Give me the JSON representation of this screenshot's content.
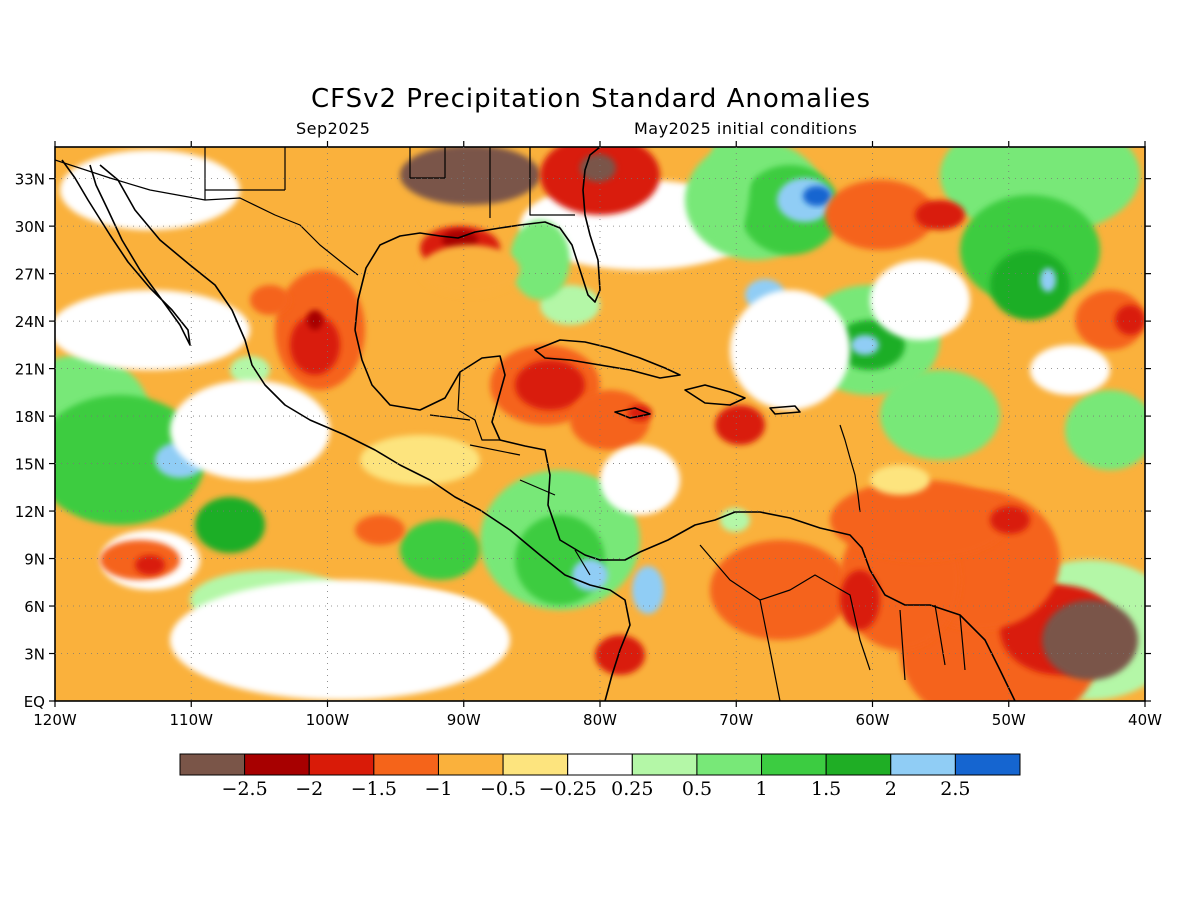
{
  "header": {
    "title": "CFSv2 Precipitation Standard Anomalies",
    "target_month": "Sep2025",
    "initial_conditions": "May2025 initial conditions"
  },
  "chart_data": {
    "type": "heatmap",
    "variable": "Precipitation standard anomaly",
    "lon_range": [
      -120,
      -40
    ],
    "lat_range": [
      0,
      35
    ],
    "x_ticks": [
      "120W",
      "110W",
      "100W",
      "90W",
      "80W",
      "70W",
      "60W",
      "50W",
      "40W"
    ],
    "y_ticks": [
      "EQ",
      "3N",
      "6N",
      "9N",
      "12N",
      "15N",
      "18N",
      "21N",
      "24N",
      "27N",
      "30N",
      "33N"
    ],
    "colorbar": {
      "labels": [
        "-2.5",
        "-2",
        "-1.5",
        "-1",
        "-0.5",
        "-0.25",
        "0.25",
        "0.5",
        "1",
        "1.5",
        "2",
        "2.5"
      ],
      "colors": [
        "#7a5548",
        "#a70000",
        "#d91b08",
        "#f5641a",
        "#fab13c",
        "#fde47e",
        "#ffffff",
        "#b4f7a7",
        "#78e878",
        "#3ccc41",
        "#1fae25",
        "#90cdf5",
        "#1565d0"
      ]
    }
  }
}
